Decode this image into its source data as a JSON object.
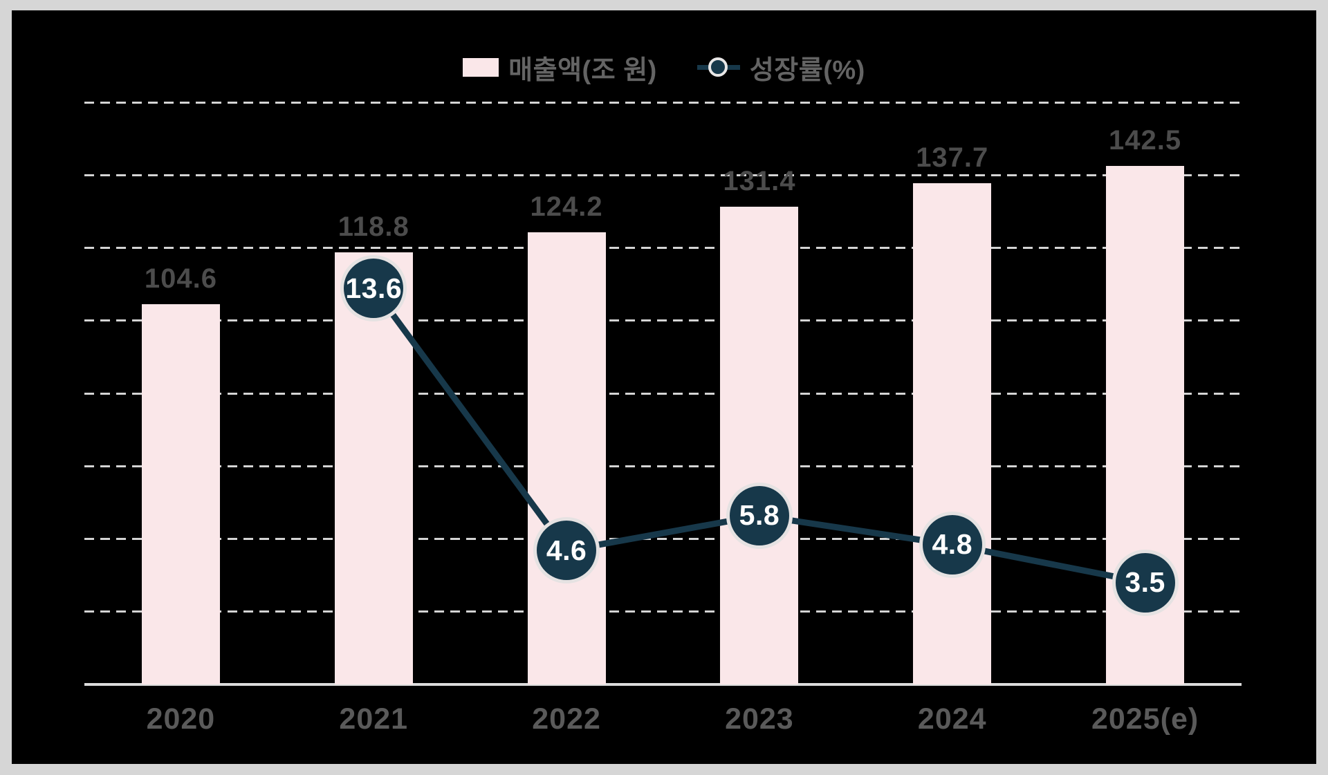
{
  "frame": {
    "outer_background": "#d6d6d6",
    "panel_background": "#000000"
  },
  "colors": {
    "bar_fill": "#fae7e9",
    "line_and_marker": "#17384a",
    "marker_ring": "#e5e2e2",
    "marker_value_text": "#ffffff",
    "bar_value_text": "#4c4c4c",
    "category_text": "#5a5a5a",
    "legend_text": "#646464",
    "gridline": "#d4d4d4",
    "axis_line": "#dcdcdc"
  },
  "legend": {
    "position": "top-center",
    "entries": [
      {
        "label": "매출액(조 원)",
        "marker": "bar-swatch",
        "color": "#fae7e9"
      },
      {
        "label": "성장률(%)",
        "marker": "line-dot",
        "color": "#17384a"
      }
    ]
  },
  "chart_data": {
    "type": "bar",
    "subtype": "combo-bar-line",
    "categories": [
      "2020",
      "2021",
      "2022",
      "2023",
      "2024",
      "2025(e)"
    ],
    "series": [
      {
        "name": "매출액(조 원)",
        "type": "bar",
        "values": [
          104.6,
          118.8,
          124.2,
          131.4,
          137.7,
          142.5
        ],
        "color": "#fae7e9",
        "axis": "left",
        "ylim": [
          0,
          160
        ]
      },
      {
        "name": "성장률(%)",
        "type": "line",
        "values": [
          null,
          13.6,
          4.6,
          5.8,
          4.8,
          3.5
        ],
        "color": "#17384a",
        "axis": "right",
        "ylim": [
          0,
          20
        ]
      }
    ],
    "title": "",
    "xlabel": "",
    "ylabel": "",
    "grid": "horizontal-dashed",
    "gridline_count": 8,
    "y_axis_tick_labels_visible": false,
    "legend_position": "top-center",
    "data_labels": "all-points-labeled"
  }
}
